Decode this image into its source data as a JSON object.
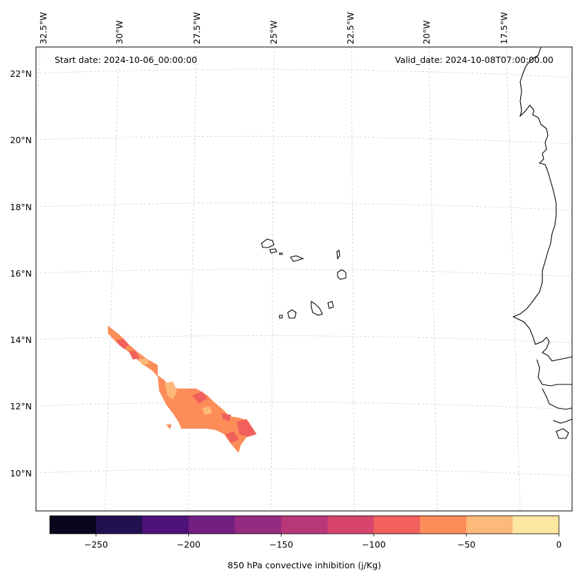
{
  "annotations": {
    "start_date": "Start date: 2024-10-06_00:00:00",
    "valid_date": "Valid_date: 2024-10-08T07:00:00.00"
  },
  "longitude_labels": [
    "32.5°W",
    "30°W",
    "27.5°W",
    "25°W",
    "22.5°W",
    "20°W",
    "17.5°W"
  ],
  "latitude_labels": [
    "22°N",
    "20°N",
    "18°N",
    "16°N",
    "14°N",
    "12°N",
    "10°N"
  ],
  "colorbar": {
    "label": "850 hPa convective inhibition (j/Kg)",
    "min": -275,
    "max": 0,
    "tick_values": [
      -250,
      -200,
      -150,
      -100,
      -50,
      0
    ],
    "tick_labels": [
      "−250",
      "−200",
      "−150",
      "−100",
      "−50",
      "0"
    ],
    "levels": [
      -275,
      -250,
      -225,
      -200,
      -175,
      -150,
      -125,
      -100,
      -75,
      -50,
      -25,
      0
    ],
    "colors": [
      "#07061c",
      "#221150",
      "#4f117b",
      "#721f81",
      "#932b80",
      "#b73779",
      "#d8456c",
      "#f1605d",
      "#fc8d59",
      "#fdb97a",
      "#fde7a0"
    ]
  },
  "field_colors": {
    "cin_minus_87": "#f1605d",
    "cin_minus_62": "#fc8d59",
    "cin_minus_37": "#fdb97a"
  }
}
